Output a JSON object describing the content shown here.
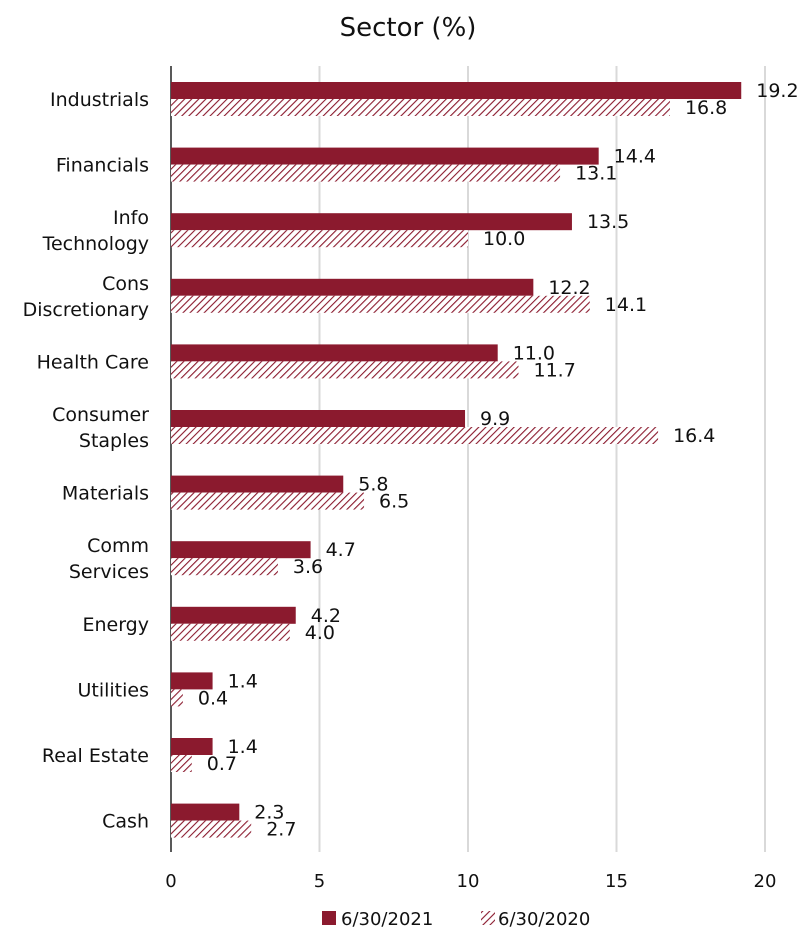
{
  "chart_data": {
    "type": "bar",
    "orientation": "horizontal",
    "title": "Sector (%)",
    "xlabel": "",
    "ylabel": "",
    "xlim": [
      0,
      20
    ],
    "xticks": [
      0,
      5,
      10,
      15,
      20
    ],
    "grid": true,
    "legend_position": "bottom",
    "categories": [
      [
        "Industrials"
      ],
      [
        "Financials"
      ],
      [
        "Info",
        "Technology"
      ],
      [
        "Cons",
        "Discretionary"
      ],
      [
        "Health Care"
      ],
      [
        "Consumer",
        "Staples"
      ],
      [
        "Materials"
      ],
      [
        "Comm",
        "Services"
      ],
      [
        "Energy"
      ],
      [
        "Utilities"
      ],
      [
        "Real Estate"
      ],
      [
        "Cash"
      ]
    ],
    "series": [
      {
        "name": "6/30/2021",
        "color": "#8b1a2e",
        "fill": "solid",
        "values": [
          19.2,
          14.4,
          13.5,
          12.2,
          11.0,
          9.9,
          5.8,
          4.7,
          4.2,
          1.4,
          1.4,
          2.3
        ]
      },
      {
        "name": "6/30/2020",
        "color": "#8b1a2e",
        "fill": "hatched",
        "values": [
          16.8,
          13.1,
          10.0,
          14.1,
          11.7,
          16.4,
          6.5,
          3.6,
          4.0,
          0.4,
          0.7,
          2.7
        ]
      }
    ]
  }
}
